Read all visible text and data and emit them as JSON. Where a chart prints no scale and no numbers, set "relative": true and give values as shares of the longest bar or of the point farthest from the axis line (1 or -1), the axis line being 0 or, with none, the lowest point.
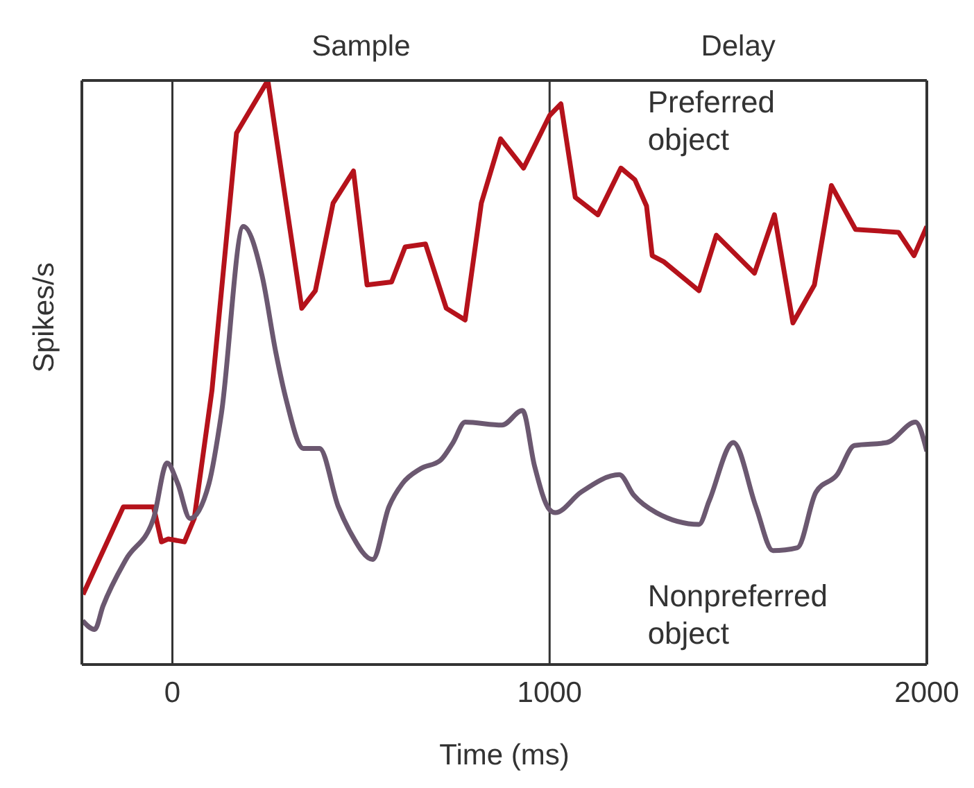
{
  "chart_data": {
    "type": "line",
    "xlabel": "Time (ms)",
    "ylabel": "Spikes/s",
    "relative": true,
    "xlim": [
      -240,
      2000
    ],
    "xticks": [
      0,
      1000,
      2000
    ],
    "marker": "none",
    "line_style": "solid",
    "annotations": [
      "Sample",
      "Delay"
    ],
    "ref_lines": [
      {
        "axis": "x",
        "value": 0,
        "color": "#333333"
      },
      {
        "axis": "x",
        "value": 1000,
        "color": "#333333"
      }
    ],
    "series": [
      {
        "name": "Preferred object",
        "color": "#b5121b",
        "x": [
          -237,
          -130,
          -50,
          -29,
          -11,
          32,
          58,
          105,
          170,
          253,
          343,
          379,
          426,
          480,
          516,
          581,
          617,
          671,
          726,
          776,
          819,
          870,
          931,
          1000,
          1030,
          1068,
          1128,
          1189,
          1226,
          1257,
          1272,
          1302,
          1396,
          1442,
          1543,
          1596,
          1645,
          1702,
          1747,
          1811,
          1925,
          1966,
          2000
        ],
        "values": [
          0.12,
          0.27,
          0.27,
          0.21,
          0.215,
          0.21,
          0.25,
          0.47,
          0.91,
          1.0,
          0.61,
          0.64,
          0.79,
          0.845,
          0.65,
          0.655,
          0.715,
          0.72,
          0.61,
          0.59,
          0.79,
          0.9,
          0.85,
          0.94,
          0.96,
          0.8,
          0.77,
          0.85,
          0.83,
          0.785,
          0.7,
          0.69,
          0.64,
          0.735,
          0.67,
          0.77,
          0.585,
          0.65,
          0.82,
          0.745,
          0.74,
          0.7,
          0.75
        ]
      },
      {
        "name": "Nonpreferred object",
        "color": "#6b5870",
        "x": [
          -238,
          -206,
          -184,
          -123,
          -50,
          -14,
          14,
          47,
          97,
          130,
          188,
          238,
          274,
          303,
          347,
          390,
          440,
          473,
          531,
          574,
          610,
          657,
          711,
          744,
          776,
          874,
          928,
          960,
          1000,
          1015,
          1083,
          1185,
          1223,
          1283,
          1396,
          1423,
          1487,
          1547,
          1592,
          1657,
          1706,
          1762,
          1808,
          1894,
          1970,
          2000
        ],
        "values": [
          0.075,
          0.06,
          0.1,
          0.18,
          0.25,
          0.345,
          0.31,
          0.25,
          0.31,
          0.43,
          0.75,
          0.665,
          0.535,
          0.45,
          0.37,
          0.37,
          0.27,
          0.225,
          0.18,
          0.27,
          0.31,
          0.335,
          0.35,
          0.38,
          0.415,
          0.41,
          0.435,
          0.34,
          0.265,
          0.26,
          0.295,
          0.325,
          0.29,
          0.26,
          0.24,
          0.28,
          0.38,
          0.27,
          0.195,
          0.2,
          0.295,
          0.325,
          0.375,
          0.38,
          0.415,
          0.365
        ]
      }
    ]
  }
}
